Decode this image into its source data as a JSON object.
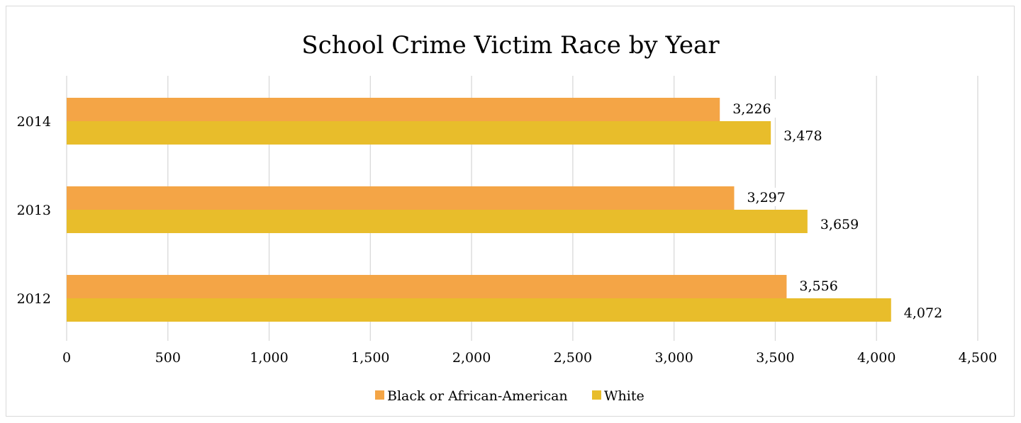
{
  "chart_data": {
    "type": "bar",
    "orientation": "horizontal",
    "title": "School Crime Victim Race by Year",
    "categories": [
      "2014",
      "2013",
      "2012"
    ],
    "series": [
      {
        "name": "Black or African-American",
        "color": "#f4a546",
        "values": [
          3226,
          3297,
          3556
        ],
        "labels": [
          "3,226",
          "3,297",
          "3,556"
        ]
      },
      {
        "name": "White",
        "color": "#e8bd2b",
        "values": [
          3478,
          3659,
          4072
        ],
        "labels": [
          "3,478",
          "3,659",
          "4,072"
        ]
      }
    ],
    "xlim": [
      0,
      4500
    ],
    "xticks": [
      0,
      500,
      1000,
      1500,
      2000,
      2500,
      3000,
      3500,
      4000,
      4500
    ],
    "xtick_labels": [
      "0",
      "500",
      "1,000",
      "1,500",
      "2,000",
      "2,500",
      "3,000",
      "3,500",
      "4,000",
      "4,500"
    ],
    "grid": true,
    "legend_position": "bottom"
  }
}
